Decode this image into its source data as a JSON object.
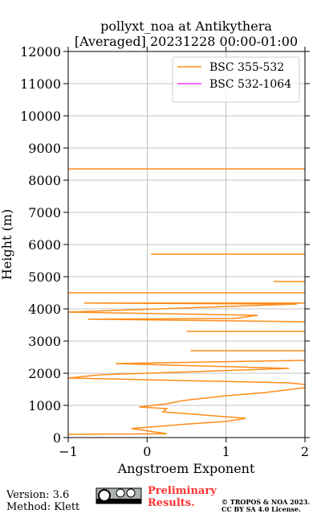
{
  "chart_data": {
    "type": "line",
    "title": [
      "pollyxt_noa at Antikythera",
      "[Averaged] 20231228 00:00-01:00"
    ],
    "xlabel": "Angstroem Exponent",
    "ylabel": "Height (m)",
    "xlim": [
      -1,
      2
    ],
    "ylim": [
      0,
      12000
    ],
    "xticks": [
      {
        "value": -1,
        "label": "−1"
      },
      0,
      1,
      2
    ],
    "yticks": [
      0,
      1000,
      2000,
      3000,
      4000,
      5000,
      6000,
      7000,
      8000,
      9000,
      10000,
      11000,
      12000
    ],
    "grid": true,
    "legend": "upper right",
    "series": [
      {
        "name": "BSC 355-532",
        "color": "#ff8c1a",
        "x": [
          -1,
          0.25,
          -0.2,
          0,
          0.5,
          1.0,
          1.25,
          0.2,
          0.25,
          -0.1,
          0.25,
          0.45,
          1.0,
          1.5,
          2.0,
          null,
          2.0,
          1.8,
          -1,
          -0.6,
          1.8,
          -0.4,
          2.0,
          null,
          0.55,
          2.0,
          null,
          0.5,
          2.0,
          null,
          2.0,
          -0.75,
          1.1,
          1.4,
          -1,
          1.9,
          -0.8,
          2.0,
          null,
          -1,
          2.0,
          null,
          1.6,
          2.0,
          null,
          0.05,
          2.0,
          null,
          -1,
          2.0
        ],
        "y": [
          100,
          120,
          280,
          320,
          420,
          500,
          600,
          800,
          900,
          950,
          1050,
          1150,
          1300,
          1400,
          1550,
          null,
          1650,
          1700,
          1850,
          1950,
          2150,
          2300,
          2400,
          null,
          2700,
          2700,
          null,
          3300,
          3300,
          null,
          3600,
          3680,
          3700,
          3800,
          3900,
          4150,
          4180,
          4180,
          null,
          4500,
          4500,
          null,
          4850,
          4850,
          null,
          5700,
          5700,
          null,
          8350,
          8350
        ]
      },
      {
        "name": "BSC 532-1064",
        "color": "#ff33ff",
        "x": [],
        "y": []
      }
    ]
  },
  "footer": {
    "version": "Version: 3.6",
    "method": "Method: Klett",
    "preliminary": [
      "Preliminary",
      "Results."
    ],
    "copyright": [
      "© TROPOS & NOA 2023.",
      "CC BY SA 4.0 License."
    ]
  }
}
